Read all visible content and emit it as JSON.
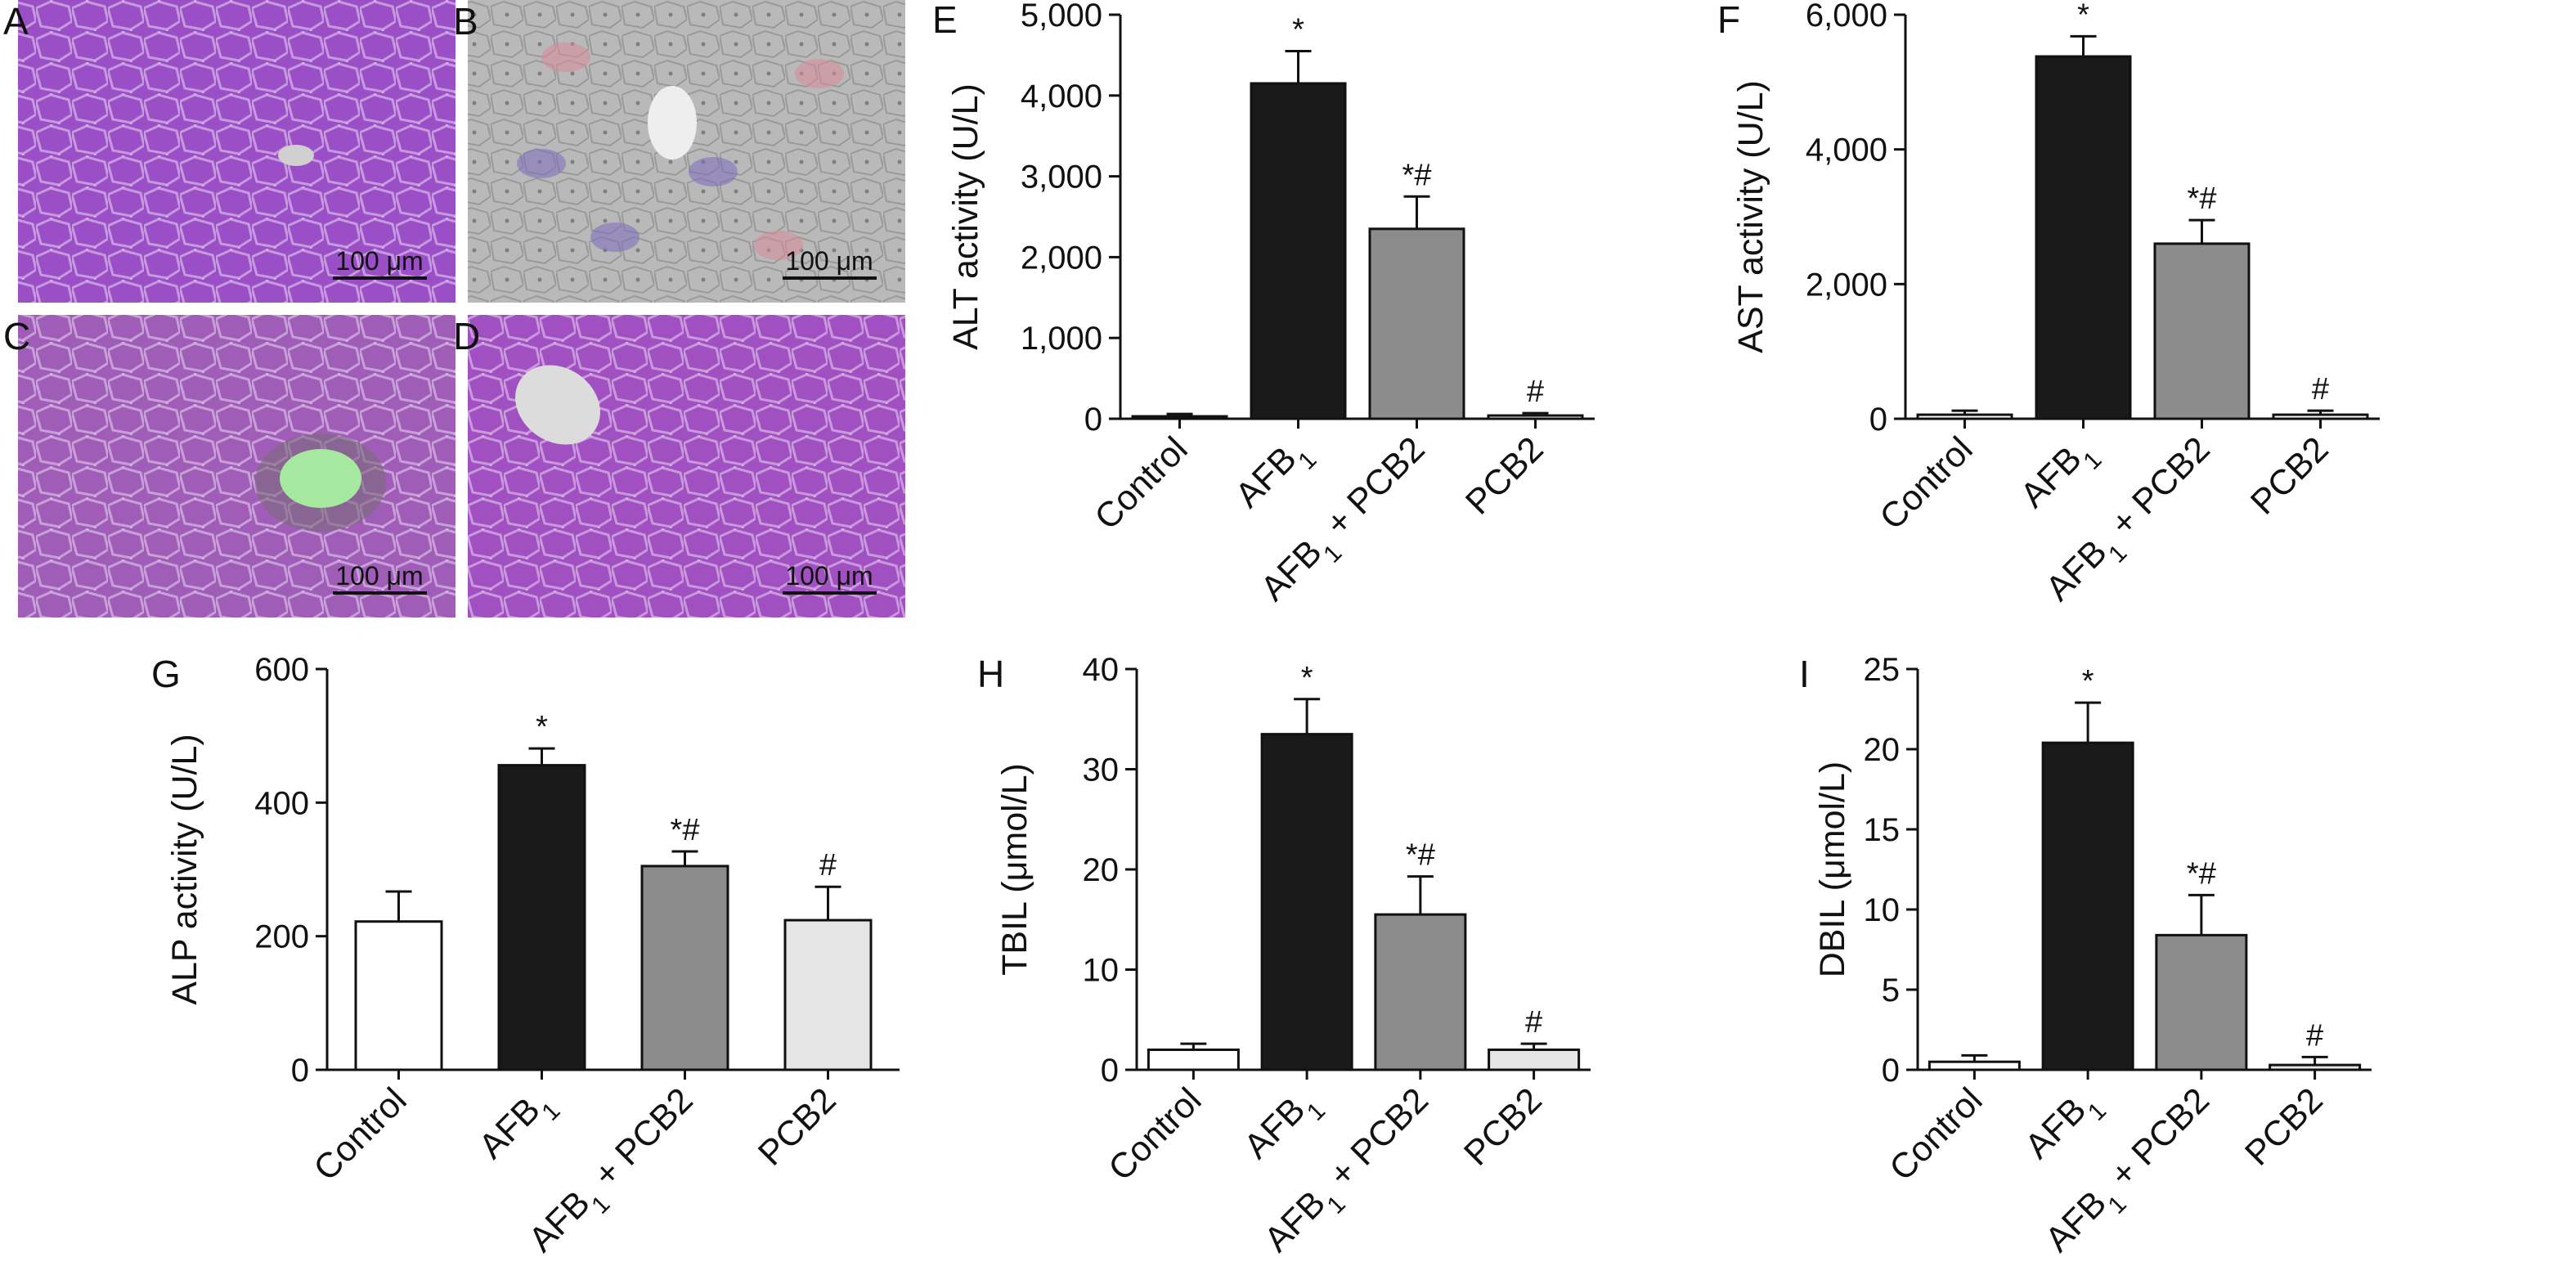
{
  "micrographs": [
    {
      "label": "A",
      "scale": "100 μm",
      "tone": "#9b4fc6"
    },
    {
      "label": "B",
      "scale": "100 μm",
      "tone": "#b9b9b9"
    },
    {
      "label": "C",
      "scale": "100 μm",
      "tone": "#9f5db8"
    },
    {
      "label": "D",
      "scale": "100 μm",
      "tone": "#a050c0"
    }
  ],
  "colors": {
    "Control": "#ffffff",
    "AFB1": "#1a1a1a",
    "AFB1 + PCB2": "#8c8c8c",
    "PCB2": "#e6e6e6",
    "stroke": "#111111"
  },
  "chart_data": [
    {
      "panel": "E",
      "type": "bar",
      "categories": [
        "Control",
        "AFB1",
        "AFB1 + PCB2",
        "PCB2"
      ],
      "values": [
        30,
        4150,
        2350,
        40
      ],
      "errors": [
        30,
        400,
        400,
        30
      ],
      "significance": [
        "",
        "*",
        "*#",
        "#"
      ],
      "ylabel": "ALT activity (U/L)",
      "ylim": [
        0,
        5000
      ],
      "yticks": [
        0,
        1000,
        2000,
        3000,
        4000,
        5000
      ],
      "yticklabels": [
        "0",
        "1,000",
        "2,000",
        "3,000",
        "4,000",
        "5,000"
      ],
      "bar_fill": [
        "Control",
        "AFB1",
        "AFB1 + PCB2",
        "Control"
      ]
    },
    {
      "panel": "F",
      "type": "bar",
      "categories": [
        "Control",
        "AFB1",
        "AFB1 + PCB2",
        "PCB2"
      ],
      "values": [
        60,
        5380,
        2600,
        60
      ],
      "errors": [
        60,
        300,
        350,
        60
      ],
      "significance": [
        "",
        "*",
        "*#",
        "#"
      ],
      "ylabel": "AST activity (U/L)",
      "ylim": [
        0,
        6000
      ],
      "yticks": [
        0,
        2000,
        4000,
        6000
      ],
      "yticklabels": [
        "0",
        "2,000",
        "4,000",
        "6,000"
      ],
      "bar_fill": [
        "Control",
        "AFB1",
        "AFB1 + PCB2",
        "Control"
      ]
    },
    {
      "panel": "G",
      "type": "bar",
      "categories": [
        "Control",
        "AFB1",
        "AFB1 + PCB2",
        "PCB2"
      ],
      "values": [
        222,
        456,
        305,
        224
      ],
      "errors": [
        45,
        25,
        22,
        50
      ],
      "significance": [
        "",
        "*",
        "*#",
        "#"
      ],
      "ylabel": "ALP activity (U/L)",
      "ylim": [
        0,
        600
      ],
      "yticks": [
        0,
        200,
        400,
        600
      ],
      "yticklabels": [
        "0",
        "200",
        "400",
        "600"
      ],
      "bar_fill": [
        "Control",
        "AFB1",
        "AFB1 + PCB2",
        "PCB2"
      ]
    },
    {
      "panel": "H",
      "type": "bar",
      "categories": [
        "Control",
        "AFB1",
        "AFB1 + PCB2",
        "PCB2"
      ],
      "values": [
        2,
        33.5,
        15.5,
        2
      ],
      "errors": [
        0.6,
        3.5,
        3.8,
        0.6
      ],
      "significance": [
        "",
        "*",
        "*#",
        "#"
      ],
      "ylabel": "TBIL (μmol/L)",
      "ylim": [
        0,
        40
      ],
      "yticks": [
        0,
        10,
        20,
        30,
        40
      ],
      "yticklabels": [
        "0",
        "10",
        "20",
        "30",
        "40"
      ],
      "bar_fill": [
        "Control",
        "AFB1",
        "AFB1 + PCB2",
        "PCB2"
      ]
    },
    {
      "panel": "I",
      "type": "bar",
      "categories": [
        "Control",
        "AFB1",
        "AFB1 + PCB2",
        "PCB2"
      ],
      "values": [
        0.5,
        20.4,
        8.4,
        0.3
      ],
      "errors": [
        0.4,
        2.5,
        2.5,
        0.5
      ],
      "significance": [
        "",
        "*",
        "*#",
        "#"
      ],
      "ylabel": "DBIL (μmol/L)",
      "ylim": [
        0,
        25
      ],
      "yticks": [
        0,
        5,
        10,
        15,
        20,
        25
      ],
      "yticklabels": [
        "0",
        "5",
        "10",
        "15",
        "20",
        "25"
      ],
      "bar_fill": [
        "Control",
        "AFB1",
        "AFB1 + PCB2",
        "PCB2"
      ]
    }
  ]
}
